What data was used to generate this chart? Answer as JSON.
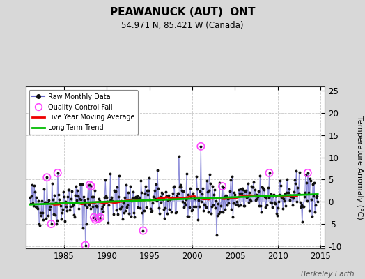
{
  "title": "PEAWANUCK (AUT)  ONT",
  "subtitle": "54.971 N, 85.421 W (Canada)",
  "ylabel_right": "Temperature Anomaly (°C)",
  "watermark": "Berkeley Earth",
  "xlim": [
    1980.5,
    2015.5
  ],
  "ylim": [
    -10.5,
    26
  ],
  "yticks_right": [
    -10,
    -5,
    0,
    5,
    10,
    15,
    20,
    25
  ],
  "xticks": [
    1985,
    1990,
    1995,
    2000,
    2005,
    2010,
    2015
  ],
  "bg_color": "#d8d8d8",
  "plot_bg_color": "#ffffff",
  "grid_color": "#bbbbbb",
  "raw_line_color": "#6666cc",
  "raw_marker_color": "#111111",
  "qc_fail_color": "#ff44ff",
  "moving_avg_color": "#ee0000",
  "trend_color": "#00bb00",
  "figsize": [
    5.24,
    4.0
  ],
  "dpi": 100
}
